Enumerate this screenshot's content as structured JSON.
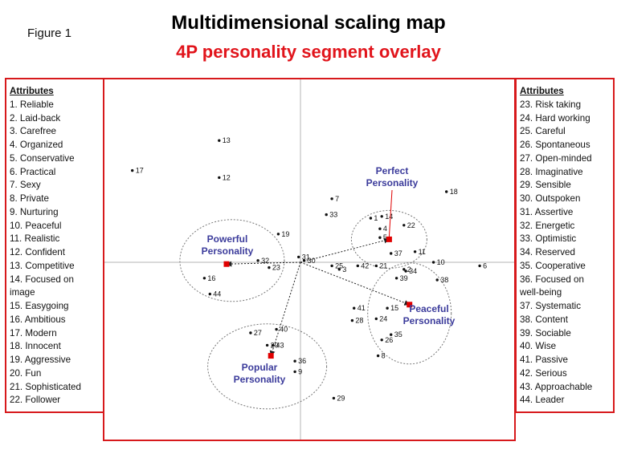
{
  "figure_label": "Figure 1",
  "title": "Multidimensional scaling map",
  "subtitle": "4P personality segment overlay",
  "left_attributes": {
    "heading": "Attributes",
    "items": [
      "1. Reliable",
      "2. Laid-back",
      "3. Carefree",
      "4. Organized",
      "5. Conservative",
      "6. Practical",
      "7. Sexy",
      "8. Private",
      "9. Nurturing",
      "10. Peaceful",
      "11. Realistic",
      "12. Confident",
      "13. Competitive",
      "14. Focused on",
      "image",
      "15. Easygoing",
      "16. Ambitious",
      "17. Modern",
      "18. Innocent",
      "19. Aggressive",
      "20. Fun",
      "21. Sophisticated",
      "22. Follower"
    ]
  },
  "right_attributes": {
    "heading": "Attributes",
    "items": [
      "23. Risk taking",
      "24. Hard working",
      "25. Careful",
      "26. Spontaneous",
      "27. Open-minded",
      "28. Imaginative",
      "29. Sensible",
      "30. Outspoken",
      "31. Assertive",
      "32. Energetic",
      "33. Optimistic",
      "34. Reserved",
      "35. Cooperative",
      "36. Focused on",
      "well-being",
      "37. Systematic",
      "38. Content",
      "39. Sociable",
      "40. Wise",
      "41. Passive",
      "42. Serious",
      "43. Approachable",
      "44. Leader"
    ]
  },
  "chart_data": {
    "type": "scatter",
    "title": "Multidimensional scaling map",
    "subtitle": "4P personality segment overlay",
    "xlim": [
      -10,
      10
    ],
    "ylim": [
      -10,
      10
    ],
    "origin": [
      0,
      0
    ],
    "points": [
      {
        "label": "1",
        "x": 3.8,
        "y": 2.5
      },
      {
        "label": "2",
        "x": 5.6,
        "y": -0.4
      },
      {
        "label": "3",
        "x": 2.1,
        "y": -0.4
      },
      {
        "label": "4",
        "x": 4.3,
        "y": 1.9
      },
      {
        "label": "5",
        "x": 4.3,
        "y": 1.4
      },
      {
        "label": "6",
        "x": 9.7,
        "y": -0.2
      },
      {
        "label": "7",
        "x": 1.7,
        "y": 3.6
      },
      {
        "label": "8",
        "x": 4.2,
        "y": -5.3
      },
      {
        "label": "9",
        "x": -0.3,
        "y": -6.2
      },
      {
        "label": "10",
        "x": 7.2,
        "y": 0.0
      },
      {
        "label": "11",
        "x": 6.2,
        "y": 0.6
      },
      {
        "label": "12",
        "x": -4.4,
        "y": 4.8
      },
      {
        "label": "13",
        "x": -4.4,
        "y": 6.9
      },
      {
        "label": "14",
        "x": 4.4,
        "y": 2.6
      },
      {
        "label": "15",
        "x": 4.7,
        "y": -2.6
      },
      {
        "label": "16",
        "x": -5.2,
        "y": -0.9
      },
      {
        "label": "17",
        "x": -9.1,
        "y": 5.2
      },
      {
        "label": "18",
        "x": 7.9,
        "y": 4.0
      },
      {
        "label": "19",
        "x": -1.2,
        "y": 1.6
      },
      {
        "label": "20",
        "x": -1.8,
        "y": -4.7
      },
      {
        "label": "21",
        "x": 4.1,
        "y": -0.2
      },
      {
        "label": "22",
        "x": 5.6,
        "y": 2.1
      },
      {
        "label": "23",
        "x": -1.7,
        "y": -0.3
      },
      {
        "label": "24",
        "x": 4.1,
        "y": -3.2
      },
      {
        "label": "25",
        "x": 1.7,
        "y": -0.2
      },
      {
        "label": "26",
        "x": 4.4,
        "y": -4.4
      },
      {
        "label": "27",
        "x": -2.7,
        "y": -4.0
      },
      {
        "label": "28",
        "x": 2.8,
        "y": -3.3
      },
      {
        "label": "29",
        "x": 1.8,
        "y": -7.7
      },
      {
        "label": "30",
        "x": 0.2,
        "y": 0.1
      },
      {
        "label": "31",
        "x": -0.1,
        "y": 0.3
      },
      {
        "label": "32",
        "x": -2.3,
        "y": 0.1
      },
      {
        "label": "33",
        "x": 1.4,
        "y": 2.7
      },
      {
        "label": "34",
        "x": 5.7,
        "y": -0.5
      },
      {
        "label": "35",
        "x": 4.9,
        "y": -4.1
      },
      {
        "label": "36",
        "x": -0.3,
        "y": -5.6
      },
      {
        "label": "37",
        "x": 4.9,
        "y": 0.5
      },
      {
        "label": "38",
        "x": 7.4,
        "y": -1.0
      },
      {
        "label": "39",
        "x": 5.2,
        "y": -0.9
      },
      {
        "label": "40",
        "x": -1.3,
        "y": -3.8
      },
      {
        "label": "41",
        "x": 2.9,
        "y": -2.6
      },
      {
        "label": "42",
        "x": 3.1,
        "y": -0.2
      },
      {
        "label": "43",
        "x": -1.5,
        "y": -4.7
      },
      {
        "label": "44",
        "x": -4.9,
        "y": -1.8
      }
    ],
    "segments": [
      {
        "name": "Perfect Personality",
        "x": 4.8,
        "y": 1.3,
        "color": "#e00000"
      },
      {
        "name": "Powerful Personality",
        "x": -4.0,
        "y": -0.1,
        "color": "#e00000"
      },
      {
        "name": "Peaceful Personality",
        "x": 5.9,
        "y": -2.4,
        "color": "#e00000"
      },
      {
        "name": "Popular Personality",
        "x": -1.6,
        "y": -5.3,
        "color": "#e00000"
      }
    ],
    "colors": {
      "accent": "#d7191c",
      "segment_text": "#3b3b9b",
      "marker": "#e00000"
    },
    "grid": false
  }
}
